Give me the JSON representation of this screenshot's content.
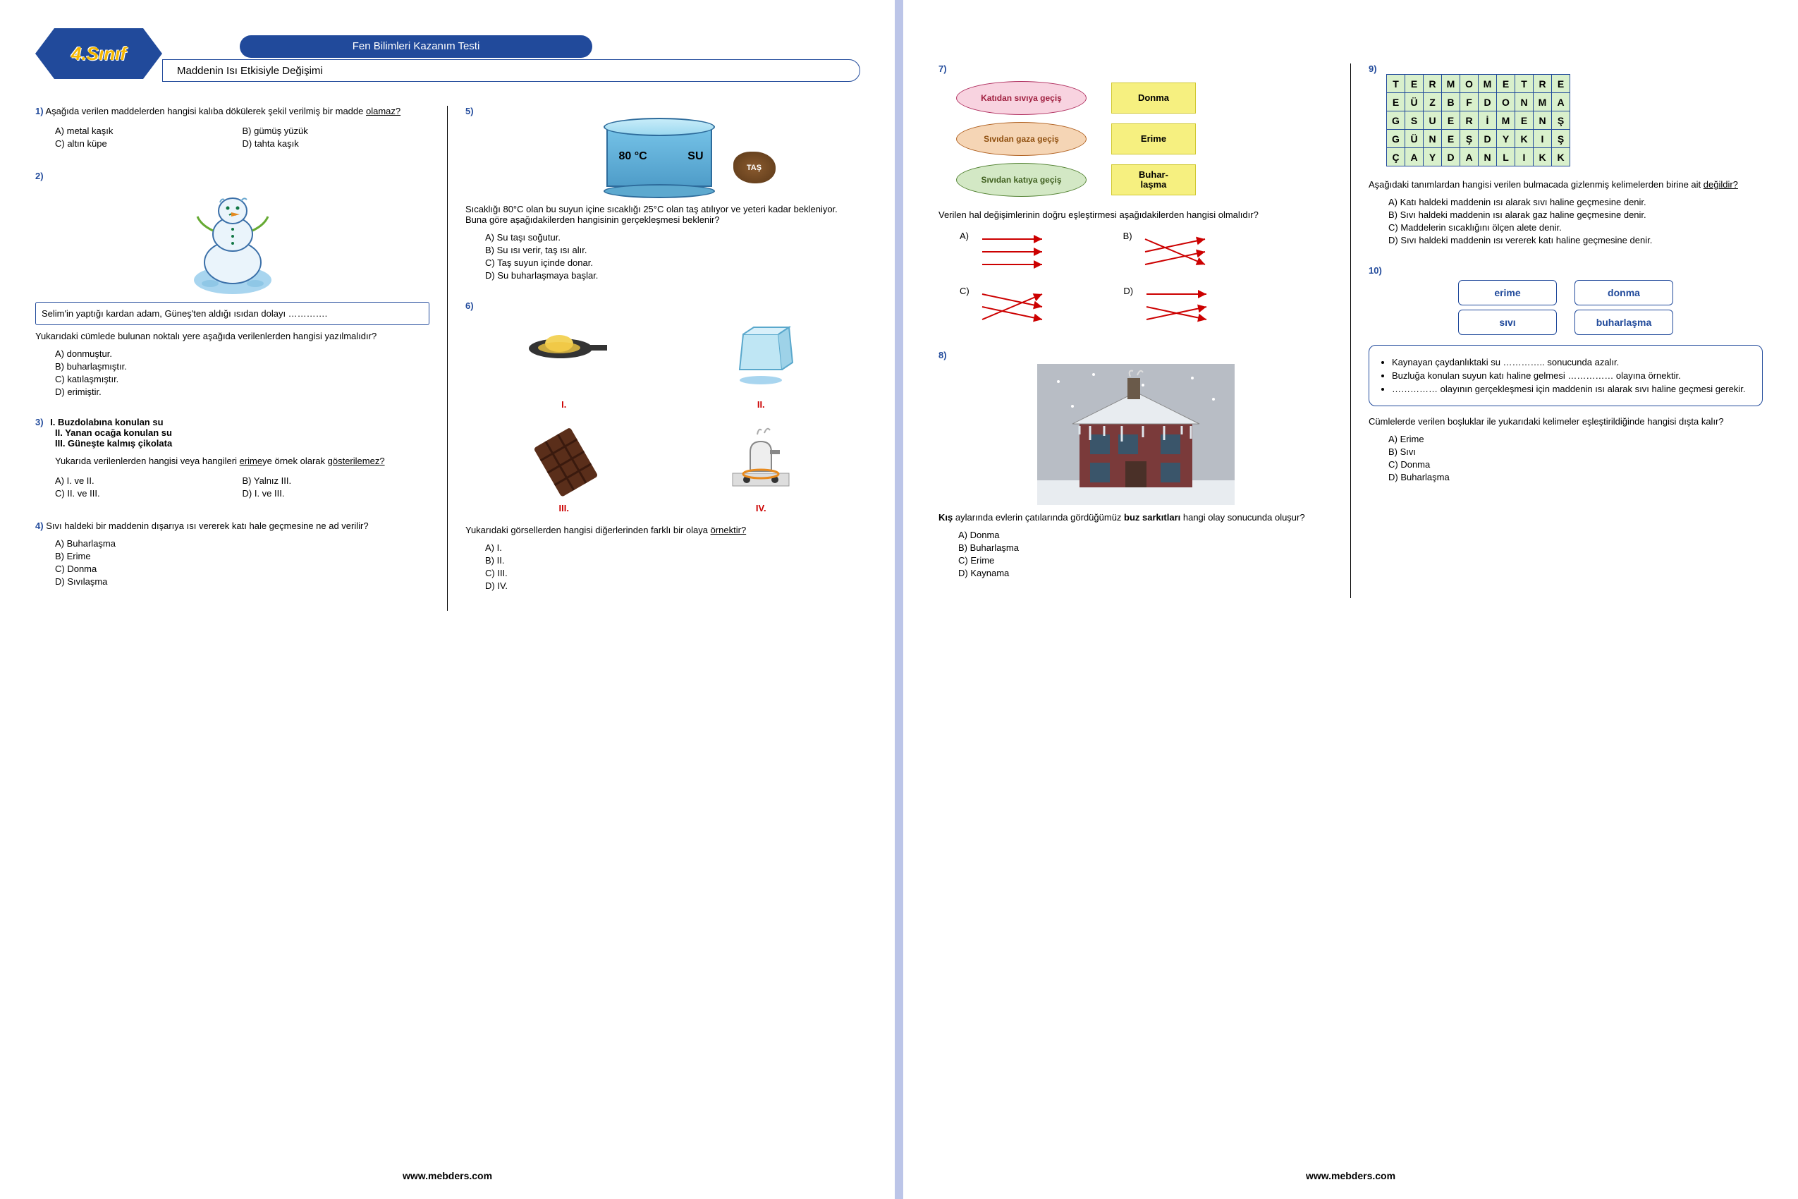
{
  "header": {
    "grade": "4.Sınıf",
    "title": "Fen Bilimleri Kazanım Testi",
    "subtitle": "Maddenin Isı Etkisiyle Değişimi"
  },
  "footer": "www.mebders.com",
  "q1": {
    "num": "1)",
    "text": "Aşağıda verilen maddelerden hangisi kalıba dökülerek şekil verilmiş bir madde ",
    "ul": "olamaz?",
    "a": "A) metal kaşık",
    "b": "B) gümüş yüzük",
    "c": "C) altın küpe",
    "d": "D) tahta kaşık"
  },
  "q2": {
    "num": "2)",
    "box": "Selim'in yaptığı kardan adam, Güneş'ten aldığı ısıdan dolayı ………….",
    "q": "Yukarıdaki cümlede bulunan noktalı yere aşağıda verilenlerden hangisi yazılmalıdır?",
    "a": "A)  donmuştur.",
    "b": "B)  buharlaşmıştır.",
    "c": "C)  katılaşmıştır.",
    "d": "D)  erimiştir."
  },
  "q3": {
    "num": "3)",
    "i1": "I. Buzdolabına konulan su",
    "i2": "II. Yanan ocağa konulan su",
    "i3": "III. Güneşte kalmış çikolata",
    "q1": "Yukarıda verilenlerden hangisi veya hangileri ",
    "ul1": "erime",
    "mid": "ye örnek olarak ",
    "ul2": "gösterilemez?",
    "a": "A)  I. ve II.",
    "b": "B) Yalnız III.",
    "c": "C)  II. ve III.",
    "d": "D) I. ve III."
  },
  "q4": {
    "num": "4)",
    "text": "Sıvı haldeki bir maddenin dışarıya ısı vererek katı hale geçmesine ne ad verilir?",
    "a": "A)  Buharlaşma",
    "b": "B)  Erime",
    "c": "C)  Donma",
    "d": "D)  Sıvılaşma"
  },
  "q5": {
    "num": "5)",
    "temp": "80 °C",
    "su": "SU",
    "tas": "TAŞ",
    "text": "Sıcaklığı 80°C olan bu suyun içine sıcaklığı 25°C olan taş atılıyor ve yeteri kadar bekleniyor. Buna göre aşağıdakilerden hangisinin gerçekleşmesi beklenir?",
    "a": "A)  Su taşı soğutur.",
    "b": "B)  Su ısı verir, taş ısı alır.",
    "c": "C)  Taş suyun içinde donar.",
    "d": "D)  Su buharlaşmaya başlar."
  },
  "q6": {
    "num": "6)",
    "l1": "I.",
    "l2": "II.",
    "l3": "III.",
    "l4": "IV.",
    "q1": "Yukarıdaki görsellerden hangisi diğerlerinden farklı bir olaya ",
    "ul": "örnektir?",
    "a": "A) I.",
    "b": "B) II.",
    "c": "C) III.",
    "d": "D) IV."
  },
  "q7": {
    "num": "7)",
    "ov1": "Katıdan sıvıya geçiş",
    "ov2": "Sıvıdan gaza geçiş",
    "ov3": "Sıvıdan katıya geçiş",
    "r1": "Donma",
    "r2": "Erime",
    "r3": "Buhar-\nlaşma",
    "q": "Verilen hal değişimlerinin doğru eşleştirmesi aşağıdakilerden hangisi olmalıdır?",
    "la": "A)",
    "lb": "B)",
    "lc": "C)",
    "ld": "D)"
  },
  "q8": {
    "num": "8)",
    "t1": "Kış ",
    "t2": "aylarında evlerin çatılarında gördüğümüz ",
    "t3": "buz sarkıtları ",
    "t4": "hangi olay sonucunda oluşur?",
    "a": "A) Donma",
    "b": "B) Buharlaşma",
    "c": "C) Erime",
    "d": "D) Kaynama"
  },
  "q9": {
    "num": "9)",
    "grid": [
      [
        "T",
        "E",
        "R",
        "M",
        "O",
        "M",
        "E",
        "T",
        "R",
        "E"
      ],
      [
        "E",
        "Ü",
        "Z",
        "B",
        "F",
        "D",
        "O",
        "N",
        "M",
        "A"
      ],
      [
        "G",
        "S",
        "U",
        "E",
        "R",
        "İ",
        "M",
        "E",
        "N",
        "Ş"
      ],
      [
        "G",
        "Ü",
        "N",
        "E",
        "Ş",
        "D",
        "Y",
        "K",
        "I",
        "Ş"
      ],
      [
        "Ç",
        "A",
        "Y",
        "D",
        "A",
        "N",
        "L",
        "I",
        "K",
        "K"
      ]
    ],
    "q1": "Aşağıdaki tanımlardan hangisi verilen bulmacada gizlenmiş kelimelerden birine ait ",
    "ul": "değildir?",
    "a": "A)  Katı haldeki maddenin ısı alarak sıvı haline geçmesine denir.",
    "b": "B)  Sıvı haldeki maddenin ısı alarak gaz haline geçmesine denir.",
    "c": "C)  Maddelerin sıcaklığını ölçen alete denir.",
    "d": "D)  Sıvı haldeki maddenin ısı vererek katı haline geçmesine denir."
  },
  "q10": {
    "num": "10)",
    "c1": "erime",
    "c2": "donma",
    "c3": "sıvı",
    "c4": "buharlaşma",
    "b1": "Kaynayan çaydanlıktaki su ………….. sonucunda azalır.",
    "b2": "Buzluğa konulan suyun katı haline gelmesi …………… olayına örnektir.",
    "b3": "…………… olayının gerçekleşmesi için maddenin ısı alarak sıvı haline geçmesi gerekir.",
    "q": "Cümlelerde verilen boşluklar ile yukarıdaki kelimeler eşleştirildiğinde hangisi dışta kalır?",
    "a": "A)  Erime",
    "b": "B)  Sıvı",
    "c": "C)  Donma",
    "d": "D)  Buharlaşma"
  }
}
